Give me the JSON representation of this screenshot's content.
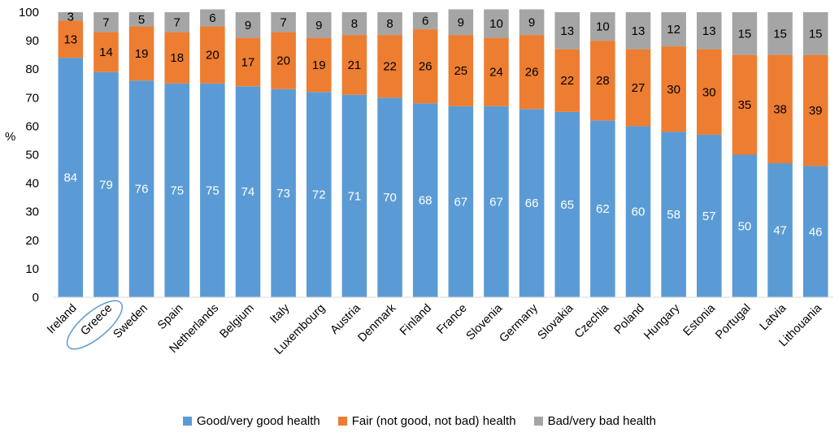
{
  "chart_data": {
    "type": "bar",
    "stacked": true,
    "ylabel": "%",
    "ylim": [
      0,
      100
    ],
    "yticks": [
      0,
      10,
      20,
      30,
      40,
      50,
      60,
      70,
      80,
      90,
      100
    ],
    "grid": false,
    "legend_position": "bottom",
    "categories": [
      "Ireland",
      "Greece",
      "Sweden",
      "Spain",
      "Netherlands",
      "Belgium",
      "Italy",
      "Luxembourg",
      "Austria",
      "Denmark",
      "Finland",
      "France",
      "Slovenia",
      "Germany",
      "Slovakia",
      "Czechia",
      "Poland",
      "Hungary",
      "Estonia",
      "Portugal",
      "Latvia",
      "Lithouania"
    ],
    "highlighted_category": "Greece",
    "series": [
      {
        "name": "Good/very good health",
        "color": "#5B9BD5",
        "label_color": "#ffffff",
        "values": [
          84,
          79,
          76,
          75,
          75,
          74,
          73,
          72,
          71,
          70,
          68,
          67,
          67,
          66,
          65,
          62,
          60,
          58,
          57,
          50,
          47,
          46
        ]
      },
      {
        "name": "Fair (not good, not bad) health",
        "color": "#ED7D31",
        "label_color": "#000000",
        "values": [
          13,
          14,
          19,
          18,
          20,
          17,
          20,
          19,
          21,
          22,
          26,
          25,
          24,
          26,
          22,
          28,
          27,
          30,
          30,
          35,
          38,
          39
        ]
      },
      {
        "name": "Bad/very bad health",
        "color": "#A5A5A5",
        "label_color": "#000000",
        "values": [
          3,
          7,
          5,
          7,
          6,
          9,
          7,
          9,
          8,
          8,
          6,
          9,
          10,
          9,
          13,
          10,
          13,
          12,
          13,
          15,
          15,
          15
        ]
      }
    ]
  }
}
